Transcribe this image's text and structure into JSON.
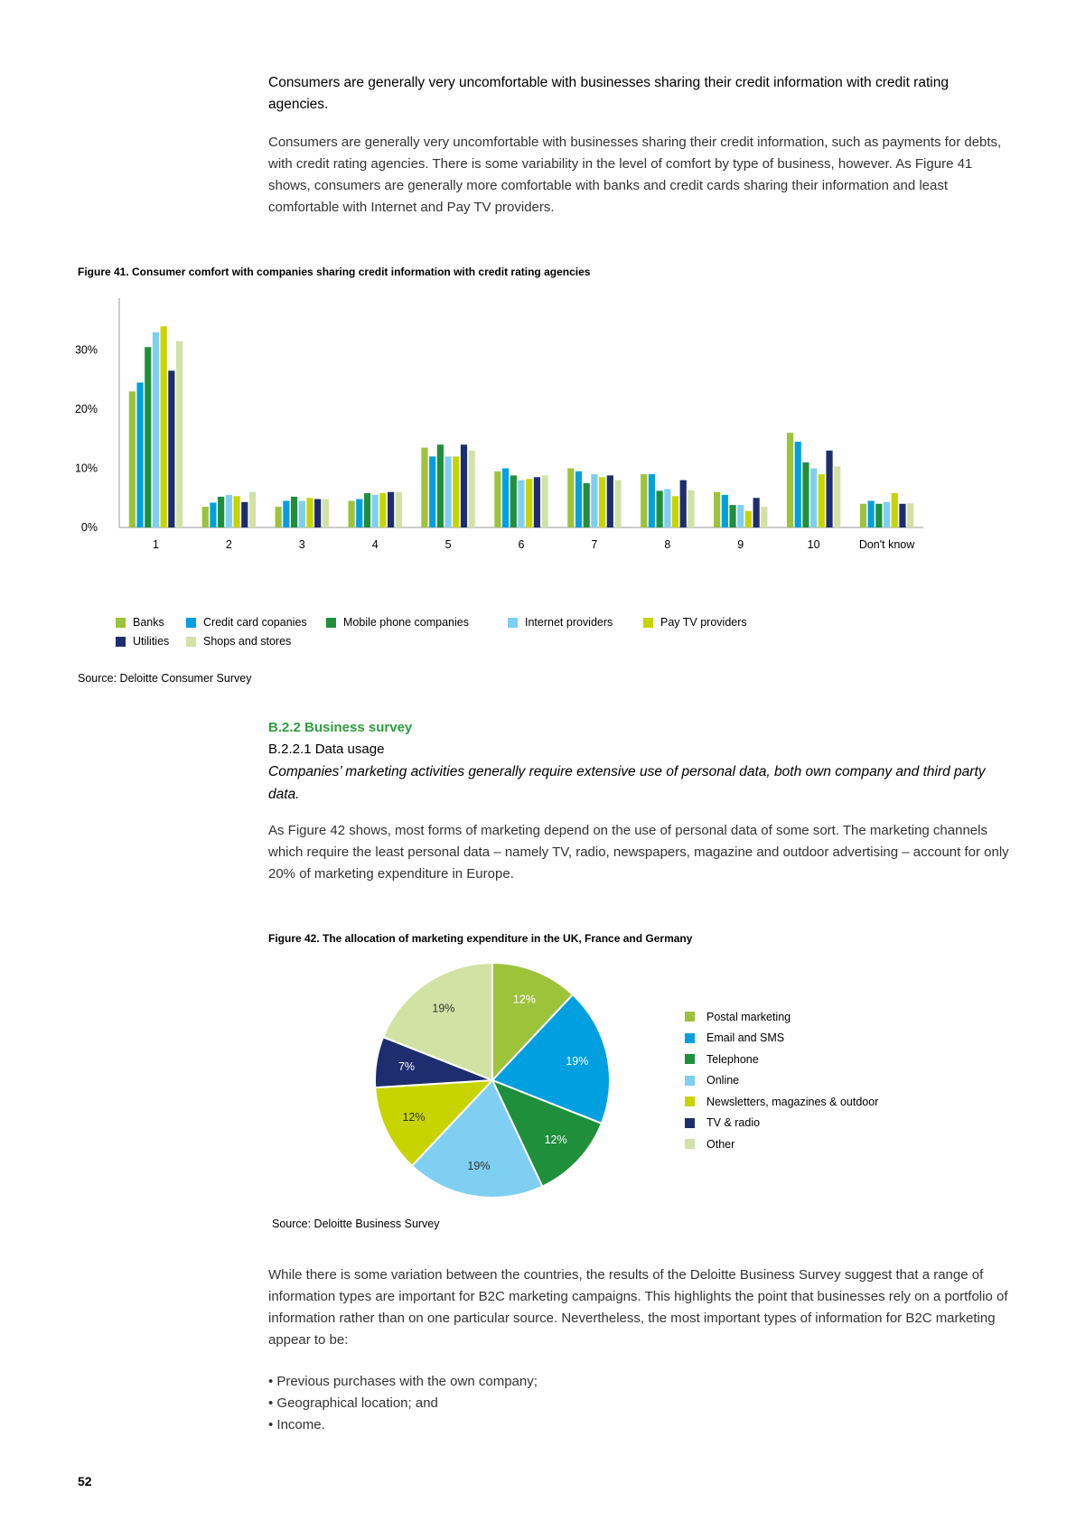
{
  "intro": {
    "heading": "Consumers are generally very uncomfortable with businesses sharing their credit information with credit rating agencies.",
    "paragraph": "Consumers are generally very uncomfortable with businesses sharing their credit information, such as payments for debts, with credit rating agencies. There is some variability in the level of comfort by type of business, however. As Figure 41 shows, consumers are generally more comfortable with banks and credit cards sharing their information and least comfortable with Internet and Pay TV providers."
  },
  "figure41": {
    "title": "Figure 41. Consumer comfort with companies sharing credit information with credit rating agencies",
    "source": "Source: Deloitte Consumer Survey"
  },
  "section": {
    "heading": "B.2.2 Business survey",
    "subheading": "B.2.2.1 Data usage",
    "lead": "Companies’ marketing activities generally require extensive use of personal data, both own company and third party data.",
    "paragraph": "As Figure 42 shows, most forms of marketing depend on the use of personal data of some sort. The marketing channels which require the least personal data – namely TV, radio, newspapers, magazine and outdoor advertising – account for only 20% of marketing expenditure in Europe."
  },
  "figure42": {
    "title": "Figure 42. The allocation of marketing expenditure in the UK, France and Germany",
    "source": "Source: Deloitte Business Survey"
  },
  "closing": {
    "paragraph": "While there is some variation between the countries, the results of the Deloitte Business Survey suggest that a range of information types are important for B2C marketing campaigns. This highlights the point that businesses rely on a portfolio of information rather than on one particular source. Nevertheless, the most important types of information for B2C marketing appear to be:",
    "bullets": [
      "Previous purchases with the own company;",
      "Geographical location; and",
      "Income."
    ]
  },
  "page_number": "52",
  "chart_data": [
    {
      "type": "bar",
      "categories": [
        "1",
        "2",
        "3",
        "4",
        "5",
        "6",
        "7",
        "8",
        "9",
        "10",
        "Don't know"
      ],
      "ylim": [
        0,
        40
      ],
      "yticks": [
        "0%",
        "10%",
        "20%",
        "30%",
        "40%"
      ],
      "grid": false,
      "legend_position": "bottom",
      "series": [
        {
          "name": "Banks",
          "color": "#9dc33b",
          "values": [
            23,
            3.5,
            3.5,
            4.5,
            13.5,
            9.5,
            10,
            9,
            6,
            16,
            4
          ]
        },
        {
          "name": "Credit card copanies",
          "color": "#00a0e0",
          "values": [
            24.5,
            4.2,
            4.5,
            4.8,
            12,
            10,
            9.5,
            9,
            5.5,
            14.5,
            4.5
          ]
        },
        {
          "name": "Mobile phone companies",
          "color": "#1f8f3c",
          "values": [
            30.5,
            5.2,
            5.2,
            5.8,
            14,
            8.8,
            7.5,
            6.2,
            3.8,
            11,
            4
          ]
        },
        {
          "name": "Internet providers",
          "color": "#7fcff2",
          "values": [
            33,
            5.5,
            4.5,
            5.5,
            12,
            8,
            9,
            6.5,
            3.8,
            10,
            4.3
          ]
        },
        {
          "name": "Pay TV providers",
          "color": "#c8d400",
          "values": [
            34,
            5.3,
            5,
            5.8,
            12,
            8.2,
            8.5,
            5.3,
            2.8,
            9,
            5.8
          ]
        },
        {
          "name": "Utilities",
          "color": "#1e2d6e",
          "values": [
            26.5,
            4.3,
            4.8,
            6,
            14,
            8.5,
            8.8,
            8,
            5,
            13,
            4
          ]
        },
        {
          "name": "Shops and stores",
          "color": "#d2e2a5",
          "values": [
            31.5,
            6,
            4.8,
            6,
            13,
            8.8,
            8,
            6.3,
            3.5,
            10.3,
            4.1
          ]
        }
      ]
    },
    {
      "type": "pie",
      "legend_position": "right",
      "slices": [
        {
          "label": "Postal marketing",
          "value": 12,
          "display": "12%",
          "color": "#9dc33b",
          "text_color": "#ffffff"
        },
        {
          "label": "Email and SMS",
          "value": 19,
          "display": "19%",
          "color": "#00a0e0",
          "text_color": "#ffffff"
        },
        {
          "label": "Telephone",
          "value": 12,
          "display": "12%",
          "color": "#1f8f3c",
          "text_color": "#ffffff"
        },
        {
          "label": "Online",
          "value": 19,
          "display": "19%",
          "color": "#7fcff2",
          "text_color": "#333333"
        },
        {
          "label": "Newsletters, magazines & outdoor",
          "value": 12,
          "display": "12%",
          "color": "#c8d400",
          "text_color": "#333333"
        },
        {
          "label": "TV & radio",
          "value": 7,
          "display": "7%",
          "color": "#1e2d6e",
          "text_color": "#ffffff"
        },
        {
          "label": "Other",
          "value": 19,
          "display": "19%",
          "color": "#d2e2a5",
          "text_color": "#333333"
        }
      ]
    }
  ]
}
